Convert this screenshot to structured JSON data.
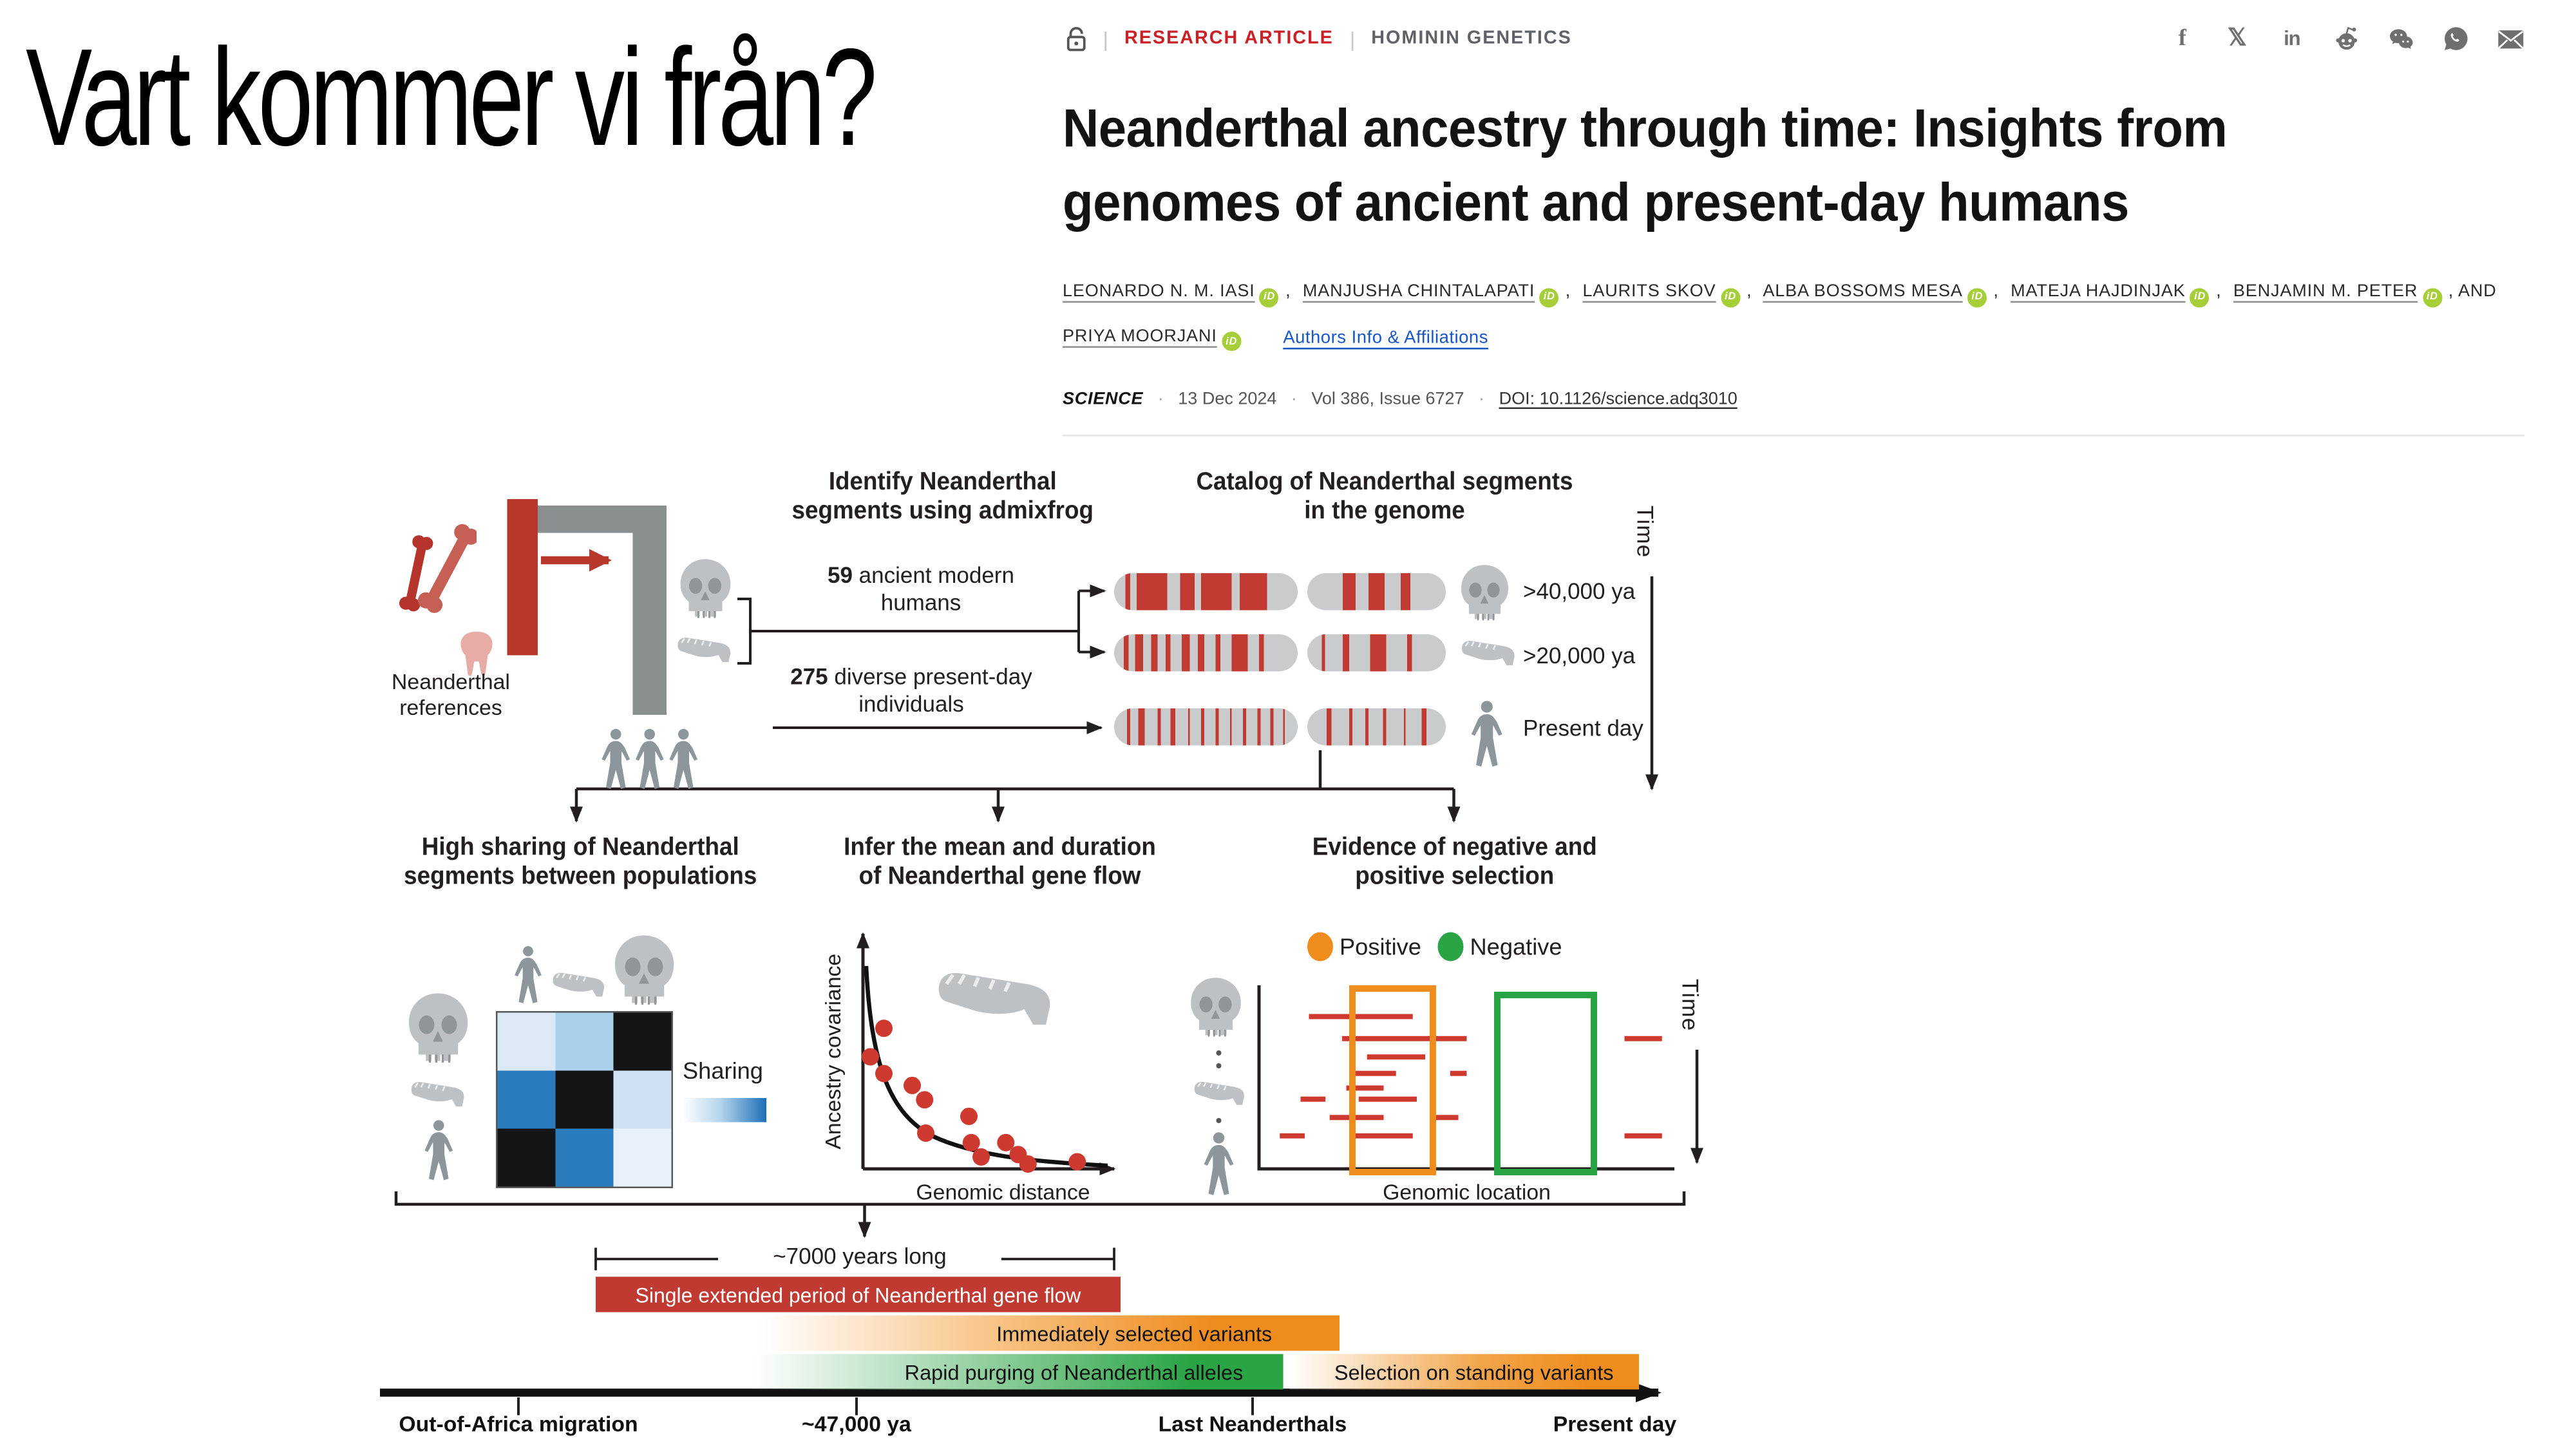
{
  "colors": {
    "science_red": "#cd2026",
    "figure_red": "#c23b32",
    "orange": "#ef8c1e",
    "green": "#2aa546",
    "heat_blue": "#2b7cbd",
    "link_blue": "#1758c7",
    "orcid_green": "#a6ce39",
    "icon_gray": "#6f6f6f"
  },
  "slide": {
    "title": "Vart kommer vi från?"
  },
  "article": {
    "kicker": "RESEARCH ARTICLE",
    "section": "HOMININ GENETICS",
    "separator": "|",
    "title": "Neanderthal ancestry through time: Insights from genomes of ancient and present-day humans",
    "authors": [
      "LEONARDO N. M. IASI",
      "MANJUSHA CHINTALAPATI",
      "LAURITS SKOV",
      "ALBA BOSSOMS MESA",
      "MATEJA HAJDINJAK",
      "BENJAMIN M. PETER",
      "PRIYA MOORJANI"
    ],
    "comma": ",",
    "and_label": ", AND",
    "orcid_label": "iD",
    "affiliations_link": "Authors Info & Affiliations",
    "journal": "SCIENCE",
    "dot": "·",
    "date": "13 Dec 2024",
    "volume": "Vol 386, Issue 6727",
    "doi": "DOI: 10.1126/science.adq3010",
    "share_icons": [
      "facebook",
      "x",
      "linkedin",
      "reddit",
      "wechat",
      "whatsapp",
      "email"
    ]
  },
  "figure": {
    "identify": {
      "title": "Identify Neanderthal\nsegments using admixfrog",
      "references_label": "Neanderthal\nreferences",
      "ancient_count": "59",
      "ancient_label": " ancient modern\nhumans",
      "present_count": "275",
      "present_label": " diverse present-day\nindividuals"
    },
    "catalog": {
      "title": "Catalog of Neanderthal segments\nin the genome",
      "time_label": "Time",
      "rows": [
        {
          "label": ">40,000 ya",
          "icon": "skull",
          "pills": [
            [
              [
                6,
                3
              ],
              [
                12,
                17
              ],
              [
                36,
                8
              ],
              [
                47,
                17
              ],
              [
                68,
                15
              ]
            ],
            [
              [
                26,
                9
              ],
              [
                44,
                12
              ],
              [
                68,
                6
              ]
            ]
          ]
        },
        {
          "label": ">20,000 ya",
          "icon": "jaw",
          "pills": [
            [
              [
                5,
                3
              ],
              [
                11,
                5
              ],
              [
                20,
                4
              ],
              [
                28,
                3
              ],
              [
                37,
                4
              ],
              [
                46,
                3
              ],
              [
                55,
                3
              ],
              [
                64,
                9
              ],
              [
                79,
                3
              ]
            ],
            [
              [
                10,
                3
              ],
              [
                26,
                4
              ],
              [
                45,
                12
              ],
              [
                72,
                4
              ]
            ]
          ]
        },
        {
          "label": "Present day",
          "icon": "person",
          "pills": [
            [
              [
                7,
                2
              ],
              [
                13,
                4
              ],
              [
                24,
                1.4
              ],
              [
                31,
                2
              ],
              [
                40,
                1.4
              ],
              [
                47,
                2
              ],
              [
                55,
                2
              ],
              [
                63,
                1.4
              ],
              [
                70,
                2
              ],
              [
                78,
                1.4
              ],
              [
                85,
                2
              ],
              [
                92,
                1.4
              ]
            ],
            [
              [
                14,
                4
              ],
              [
                30,
                2
              ],
              [
                42,
                2
              ],
              [
                55,
                1.6
              ],
              [
                70,
                1.4
              ],
              [
                82,
                4
              ]
            ]
          ]
        }
      ]
    },
    "sharing": {
      "title": "High sharing of Neanderthal\nsegments between populations",
      "legend_label": "Sharing"
    },
    "geneflow": {
      "title": "Infer the mean and duration\nof Neanderthal gene flow",
      "ylabel": "Ancestry covariance",
      "xlabel": "Genomic distance"
    },
    "selection": {
      "title": "Evidence of negative and\npositive selection",
      "legend_positive": "Positive",
      "legend_negative": "Negative",
      "xlabel": "Genomic location",
      "time_label": "Time"
    },
    "timeline": {
      "duration_label": "~7000 years long",
      "bar_red": "Single extended period of Neanderthal gene flow",
      "bar_orange1": "Immediately selected variants",
      "bar_green": "Rapid purging of Neanderthal alleles",
      "bar_orange2": "Selection on standing variants",
      "tick_labels": [
        "Out-of-Africa migration",
        "~47,000 ya",
        "Last Neanderthals",
        "Present day"
      ]
    }
  },
  "chart_data": [
    {
      "type": "scatter",
      "title": "Infer the mean and duration of Neanderthal gene flow",
      "xlabel": "Genomic distance",
      "ylabel": "Ancestry covariance",
      "x_range": [
        0,
        1
      ],
      "y_range": [
        0,
        1
      ],
      "trend": "exponential decay fit curve",
      "points": [
        [
          0.03,
          0.47
        ],
        [
          0.085,
          0.59
        ],
        [
          0.085,
          0.4
        ],
        [
          0.2,
          0.35
        ],
        [
          0.25,
          0.29
        ],
        [
          0.255,
          0.15
        ],
        [
          0.43,
          0.22
        ],
        [
          0.44,
          0.11
        ],
        [
          0.48,
          0.05
        ],
        [
          0.58,
          0.11
        ],
        [
          0.63,
          0.06
        ],
        [
          0.67,
          0.02
        ],
        [
          0.87,
          0.03
        ]
      ]
    },
    {
      "type": "heatmap",
      "title": "High sharing of Neanderthal segments between populations",
      "rows": [
        "ancient-skull",
        "ancient-jaw",
        "present-day-human"
      ],
      "cols": [
        "present-day-human",
        "ancient-jaw",
        "ancient-skull"
      ],
      "legend": "Sharing (light = low, dark blue = high, black = highest)",
      "values": [
        [
          0.15,
          0.35,
          1
        ],
        [
          0.6,
          1,
          0.25
        ],
        [
          1,
          0.6,
          0.1
        ]
      ],
      "cell_colors": [
        [
          "#dbe9f6",
          "#a9cfe9",
          "#141414"
        ],
        [
          "#2b7cbd",
          "#141414",
          "#cfe2f3"
        ],
        [
          "#141414",
          "#2b7cbd",
          "#e8f1f9"
        ]
      ]
    },
    {
      "type": "bar",
      "title": "Evidence of negative and positive selection",
      "xlabel": "Genomic location",
      "ylabel": "Time (downward)",
      "positive_box_x": [
        0.217,
        0.395
      ],
      "negative_box_x": [
        0.566,
        0.783
      ],
      "segments": [
        [
          0.12,
          0.37,
          0.17
        ],
        [
          0.2,
          0.5,
          0.29
        ],
        [
          0.26,
          0.4,
          0.39
        ],
        [
          0.22,
          0.33,
          0.48
        ],
        [
          0.46,
          0.5,
          0.48
        ],
        [
          0.21,
          0.3,
          0.56
        ],
        [
          0.1,
          0.16,
          0.62
        ],
        [
          0.24,
          0.38,
          0.62
        ],
        [
          0.17,
          0.3,
          0.72
        ],
        [
          0.42,
          0.48,
          0.72
        ],
        [
          0.05,
          0.11,
          0.82
        ],
        [
          0.22,
          0.37,
          0.82
        ],
        [
          0.88,
          0.97,
          0.29
        ],
        [
          0.88,
          0.97,
          0.82
        ]
      ]
    },
    {
      "type": "table",
      "title": "Timeline of Neanderthal gene flow and selection",
      "events": [
        "Out-of-Africa migration",
        "~47,000 ya (mean time of gene flow)",
        "Last Neanderthals",
        "Present day"
      ],
      "periods": [
        {
          "label": "Single extended period of Neanderthal gene flow",
          "duration": "~7000 years long"
        },
        {
          "label": "Immediately selected variants"
        },
        {
          "label": "Rapid purging of Neanderthal alleles"
        },
        {
          "label": "Selection on standing variants"
        }
      ]
    }
  ]
}
